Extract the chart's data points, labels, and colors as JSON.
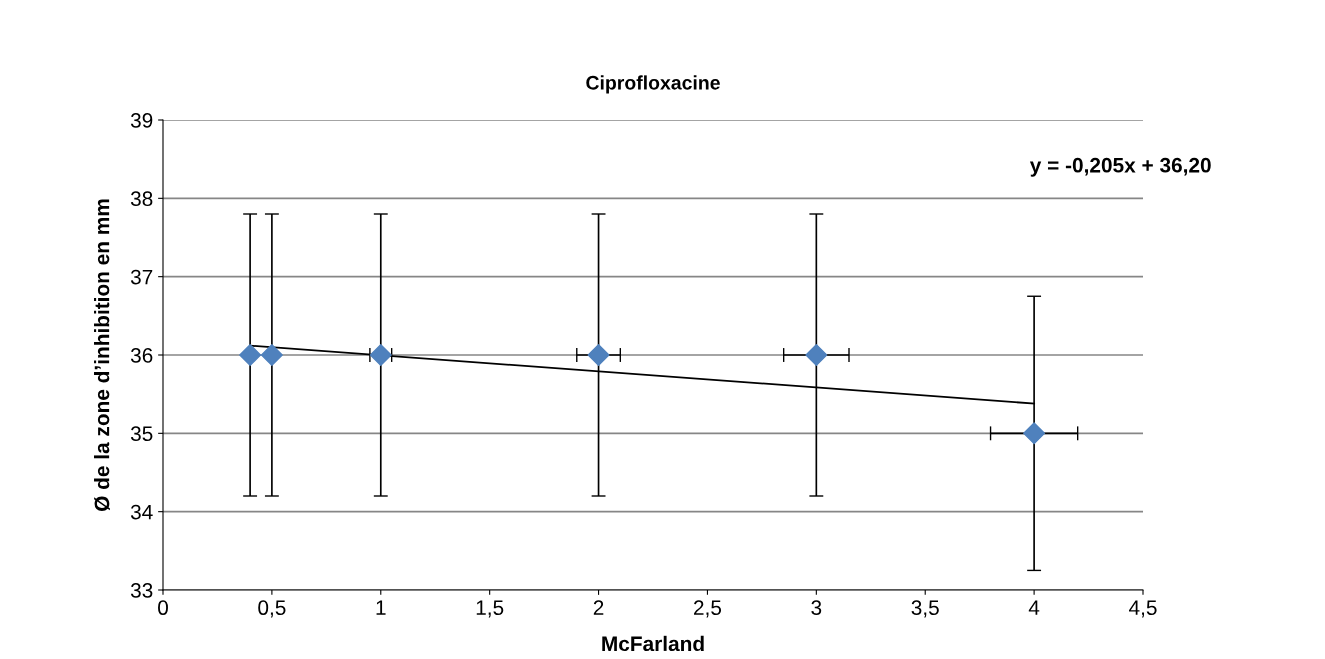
{
  "chart_data": {
    "type": "scatter",
    "title": "Ciprofloxacine",
    "xlabel": "McFarland",
    "ylabel": "Ø de la zone d’inhibition en mm",
    "x": [
      0.4,
      0.5,
      1,
      2,
      3,
      4
    ],
    "series": [
      {
        "color": "#4f81bd",
        "values": [
          36,
          36,
          36,
          36,
          36,
          35
        ],
        "marker": "diamond",
        "errors": [
          1.8,
          1.8,
          1.8,
          1.8,
          1.8,
          1.75
        ],
        "xerrors": [
          null,
          null,
          0.05,
          0.1,
          0.15,
          0.2
        ]
      },
      {
        "type": "line",
        "color": "#000000",
        "x": [
          0.4,
          4
        ],
        "values": [
          36.12,
          35.38
        ],
        "marker": "none"
      }
    ],
    "annotations": [
      "y = -0,205x + 36,20"
    ],
    "xlim": [
      0,
      4.5
    ],
    "xticks": [
      {
        "value": 0,
        "label": "0"
      },
      {
        "value": 0.5,
        "label": "0,5"
      },
      {
        "value": 1,
        "label": "1"
      },
      {
        "value": 1.5,
        "label": "1,5"
      },
      {
        "value": 2,
        "label": "2"
      },
      {
        "value": 2.5,
        "label": "2,5"
      },
      {
        "value": 3,
        "label": "3"
      },
      {
        "value": 3.5,
        "label": "3,5"
      },
      {
        "value": 4,
        "label": "4"
      },
      {
        "value": 4.5,
        "label": "4,5"
      }
    ],
    "ylim": [
      33,
      39
    ],
    "yticks": [
      33,
      34,
      35,
      36,
      37,
      38,
      39
    ],
    "grid": "y",
    "legend": false
  }
}
